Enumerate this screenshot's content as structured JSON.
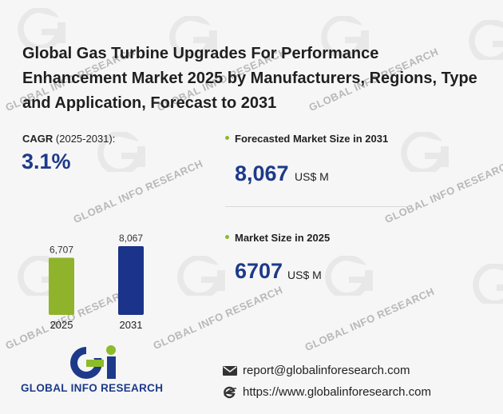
{
  "title": "Global Gas Turbine Upgrades For Performance Enhancement Market 2025 by Manufacturers, Regions, Type and Application, Forecast to 2031",
  "cagr": {
    "label": "CAGR",
    "period": "(2025-2031):",
    "value": "3.1%"
  },
  "forecast": {
    "label": "Forecasted Market Size in 2031",
    "value": "8,067",
    "unit": "US$ M"
  },
  "current": {
    "label": "Market Size in 2025",
    "value": "6707",
    "unit": "US$ M"
  },
  "chart_data": {
    "type": "bar",
    "categories": [
      "2025",
      "2031"
    ],
    "values": [
      6707,
      8067
    ],
    "value_labels": [
      "6,707",
      "8,067"
    ],
    "colors": [
      "#8fb42b",
      "#1b3389"
    ]
  },
  "brand": {
    "name": "GLOBAL INFO RESEARCH",
    "watermark": "GLOBAL INFO RESEARCH"
  },
  "contact": {
    "email": "report@globalinforesearch.com",
    "website": "https://www.globalinforesearch.com"
  },
  "colors": {
    "accent": "#1d3a8a",
    "green": "#8dbb2a"
  }
}
